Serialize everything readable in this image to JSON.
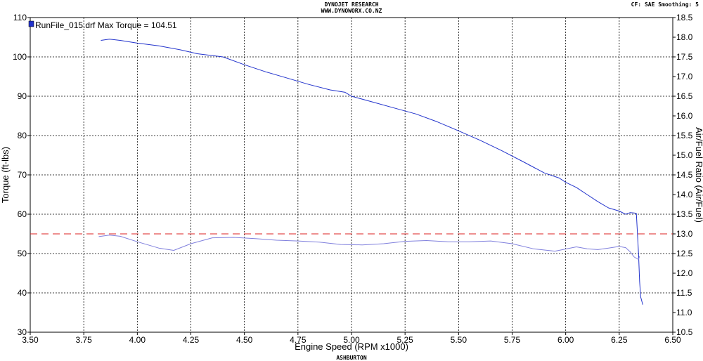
{
  "header": {
    "line1": "DYNOJET RESEARCH",
    "line2": "WWW.DYNOWORX.CO.NZ",
    "top_right": "CF: SAE  Smoothing: 5",
    "footer": "ASHBURTON"
  },
  "chart_data": {
    "type": "line",
    "xlabel": "Engine Speed (RPM x1000)",
    "ylabel": "Torque (ft-lbs)",
    "y2label": "Air/Fuel Ratio (Air/Fuel)",
    "xlim": [
      3.5,
      6.5
    ],
    "ylim": [
      30,
      110
    ],
    "y2lim": [
      10.5,
      18.5
    ],
    "grid": true,
    "x_ticks": [
      "3.50",
      "3.75",
      "4.00",
      "4.25",
      "4.50",
      "4.75",
      "5.00",
      "5.25",
      "5.50",
      "5.75",
      "6.00",
      "6.25",
      "6.50"
    ],
    "y_ticks": [
      "30",
      "40",
      "50",
      "60",
      "70",
      "80",
      "90",
      "100",
      "110"
    ],
    "y2_ticks": [
      "10.5",
      "11.0",
      "11.5",
      "12.0",
      "12.5",
      "13.0",
      "13.5",
      "14.0",
      "14.5",
      "15.0",
      "15.5",
      "16.0",
      "16.5",
      "17.0",
      "17.5",
      "18.0",
      "18.5"
    ],
    "legend": {
      "position": "top-left",
      "entries": [
        {
          "label": "RunFile_015.drf Max Torque = 104.51",
          "color": "#2233cc"
        }
      ]
    },
    "reference_line": {
      "axis": "y2",
      "value": 13.0,
      "color": "#dd2222",
      "style": "dashed"
    },
    "series": [
      {
        "name": "RunFile_015.drf Max Torque = 104.51",
        "axis": "y",
        "color": "#2233cc",
        "x": [
          3.83,
          3.87,
          3.92,
          4.0,
          4.1,
          4.2,
          4.28,
          4.4,
          4.5,
          4.6,
          4.7,
          4.8,
          4.9,
          4.97,
          5.0,
          5.1,
          5.2,
          5.3,
          5.4,
          5.5,
          5.6,
          5.7,
          5.8,
          5.9,
          5.97,
          6.0,
          6.05,
          6.1,
          6.15,
          6.2,
          6.25,
          6.28,
          6.3,
          6.32,
          6.33,
          6.34,
          6.345,
          6.35,
          6.36
        ],
        "y": [
          104.2,
          104.5,
          104.2,
          103.5,
          102.8,
          101.8,
          100.8,
          100.0,
          98.0,
          96.2,
          94.6,
          93.0,
          91.6,
          91.0,
          90.0,
          88.5,
          87.0,
          85.5,
          83.5,
          81.2,
          78.8,
          76.2,
          73.4,
          70.5,
          69.2,
          68.1,
          66.8,
          65.0,
          63.2,
          61.6,
          60.8,
          60.0,
          60.4,
          60.3,
          60.2,
          50.0,
          43.0,
          39.0,
          37.0
        ]
      },
      {
        "name": "",
        "axis": "y2",
        "color": "#8080dd",
        "x": [
          3.82,
          3.87,
          3.92,
          4.0,
          4.1,
          4.17,
          4.25,
          4.35,
          4.45,
          4.55,
          4.65,
          4.75,
          4.85,
          4.95,
          5.05,
          5.15,
          5.25,
          5.35,
          5.45,
          5.55,
          5.65,
          5.75,
          5.85,
          5.95,
          6.05,
          6.1,
          6.15,
          6.2,
          6.25,
          6.28,
          6.3,
          6.32,
          6.34,
          6.345
        ],
        "y": [
          12.93,
          12.97,
          12.94,
          12.8,
          12.64,
          12.58,
          12.75,
          12.9,
          12.91,
          12.88,
          12.84,
          12.82,
          12.79,
          12.73,
          12.72,
          12.75,
          12.81,
          12.83,
          12.8,
          12.8,
          12.82,
          12.75,
          12.62,
          12.56,
          12.67,
          12.62,
          12.6,
          12.64,
          12.68,
          12.65,
          12.55,
          12.41,
          12.35,
          12.43
        ]
      }
    ]
  }
}
